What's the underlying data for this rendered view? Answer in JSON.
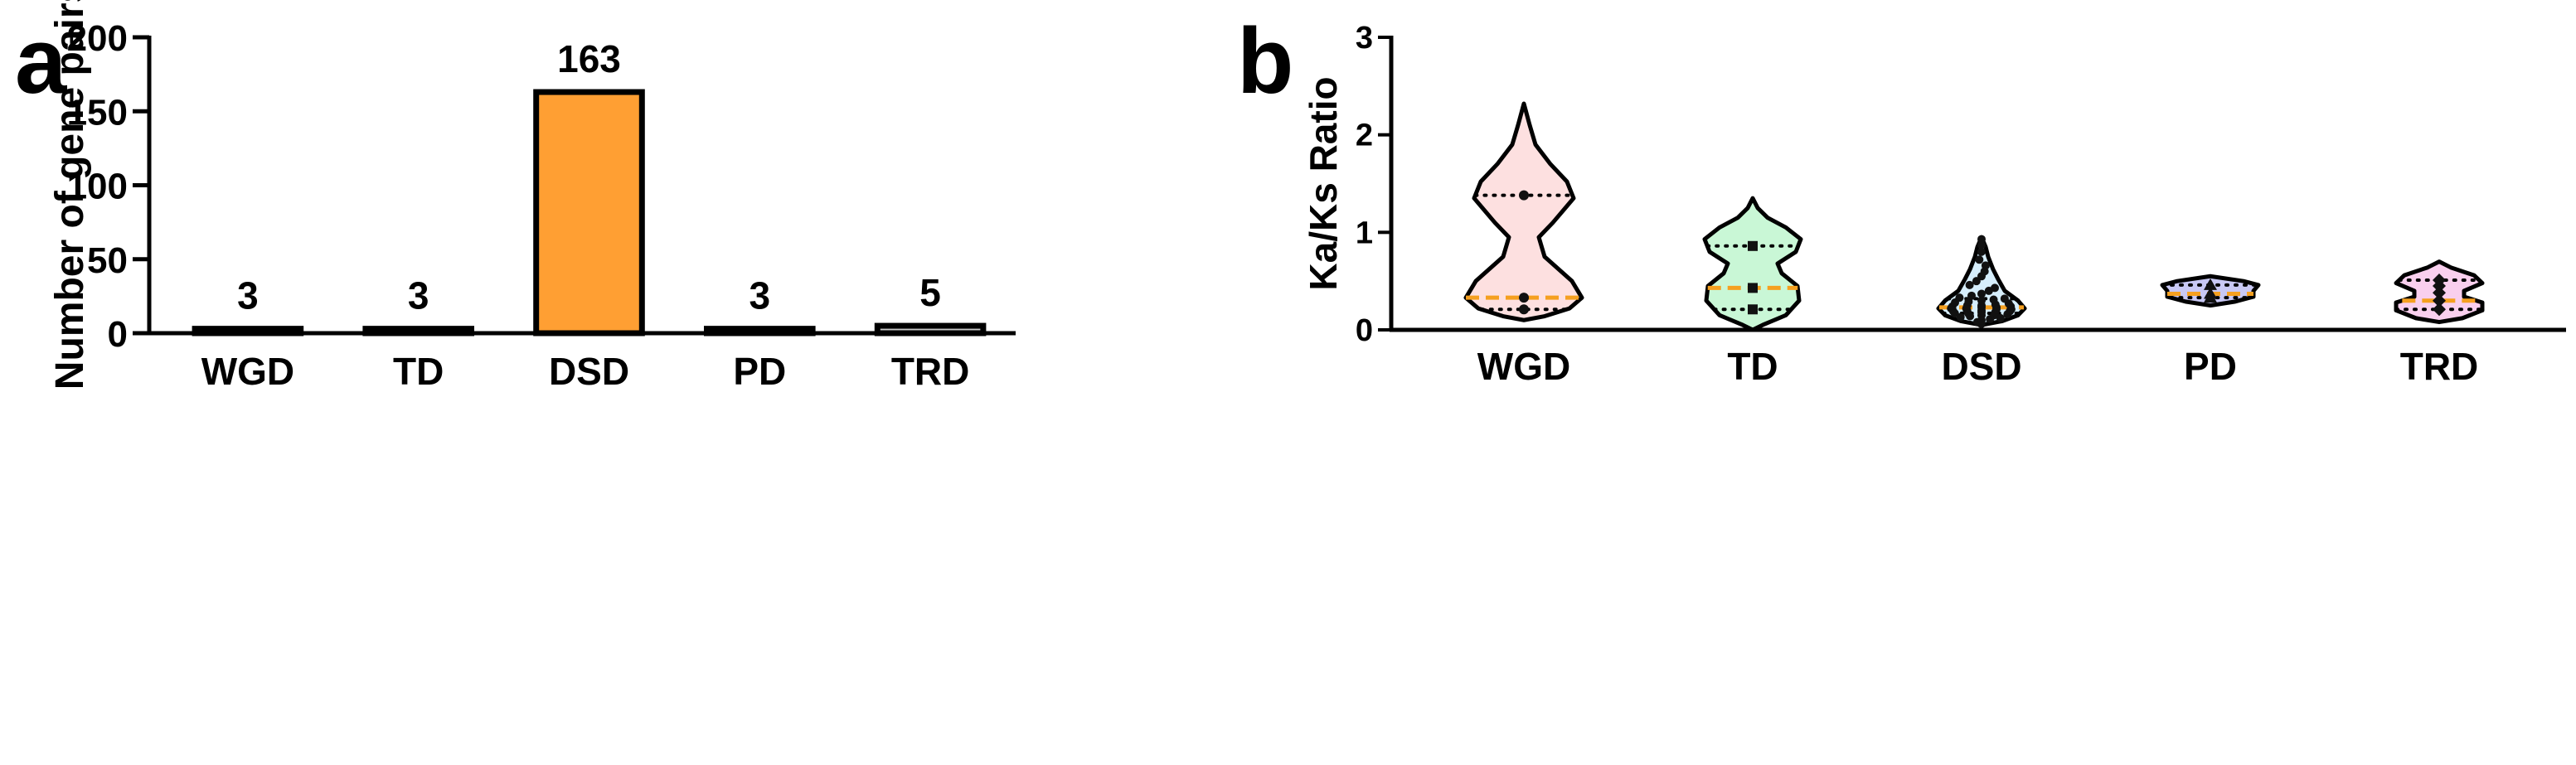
{
  "chart_data": [
    {
      "panel": "a",
      "type": "bar",
      "ylabel": "Number of gene pairs",
      "xlabel": "",
      "categories": [
        "WGD",
        "TD",
        "DSD",
        "PD",
        "TRD"
      ],
      "values": [
        3,
        3,
        163,
        3,
        5
      ],
      "data_labels": [
        "3",
        "3",
        "163",
        "3",
        "5"
      ],
      "ylim": [
        0,
        200
      ],
      "yticks": [
        0,
        50,
        100,
        150,
        200
      ],
      "bar_colors": [
        "#c8c8c8",
        "#c8c8c8",
        "#ff9f33",
        "#c8c8c8",
        "#c8c8c8"
      ],
      "grid": false
    },
    {
      "panel": "b",
      "type": "violin",
      "ylabel": "Ka/Ks Ratio",
      "xlabel": "",
      "categories": [
        "WGD",
        "TD",
        "DSD",
        "PD",
        "TRD"
      ],
      "ylim": [
        0,
        3
      ],
      "yticks": [
        0,
        1,
        2,
        3
      ],
      "fill_colors": [
        "#fde0e0",
        "#c9f7d6",
        "#d6eefc",
        "#c8c8f4",
        "#f9cfee"
      ],
      "median_color": "#f5a020",
      "series": [
        {
          "category": "WGD",
          "range": [
            0.1,
            2.32
          ],
          "q1": 0.21,
          "median": 0.33,
          "q3": 1.38,
          "points": [
            0.21,
            0.33,
            1.38
          ]
        },
        {
          "category": "TD",
          "range": [
            0.0,
            1.35
          ],
          "q1": 0.21,
          "median": 0.43,
          "q3": 0.86,
          "points": [
            0.21,
            0.43,
            0.86
          ]
        },
        {
          "category": "DSD",
          "range": [
            0.05,
            0.95
          ],
          "q1": 0.17,
          "median": 0.23,
          "q3": 0.32,
          "points": [
            0.06,
            0.08,
            0.1,
            0.11,
            0.12,
            0.13,
            0.14,
            0.15,
            0.15,
            0.16,
            0.17,
            0.17,
            0.18,
            0.18,
            0.19,
            0.19,
            0.2,
            0.2,
            0.21,
            0.21,
            0.22,
            0.22,
            0.23,
            0.23,
            0.24,
            0.24,
            0.25,
            0.25,
            0.26,
            0.27,
            0.28,
            0.29,
            0.3,
            0.31,
            0.32,
            0.33,
            0.35,
            0.37,
            0.4,
            0.43,
            0.46,
            0.5,
            0.55,
            0.6,
            0.66,
            0.72,
            0.8,
            0.87,
            0.93
          ]
        },
        {
          "category": "PD",
          "range": [
            0.25,
            0.55
          ],
          "q1": 0.33,
          "median": 0.37,
          "q3": 0.46,
          "points": [
            0.33,
            0.37,
            0.46
          ]
        },
        {
          "category": "TRD",
          "range": [
            0.08,
            0.7
          ],
          "q1": 0.21,
          "median": 0.3,
          "q3": 0.51,
          "points": [
            0.21,
            0.3,
            0.38,
            0.45,
            0.51
          ]
        }
      ]
    }
  ],
  "labels": {
    "panel_a": "a",
    "panel_b": "b"
  }
}
